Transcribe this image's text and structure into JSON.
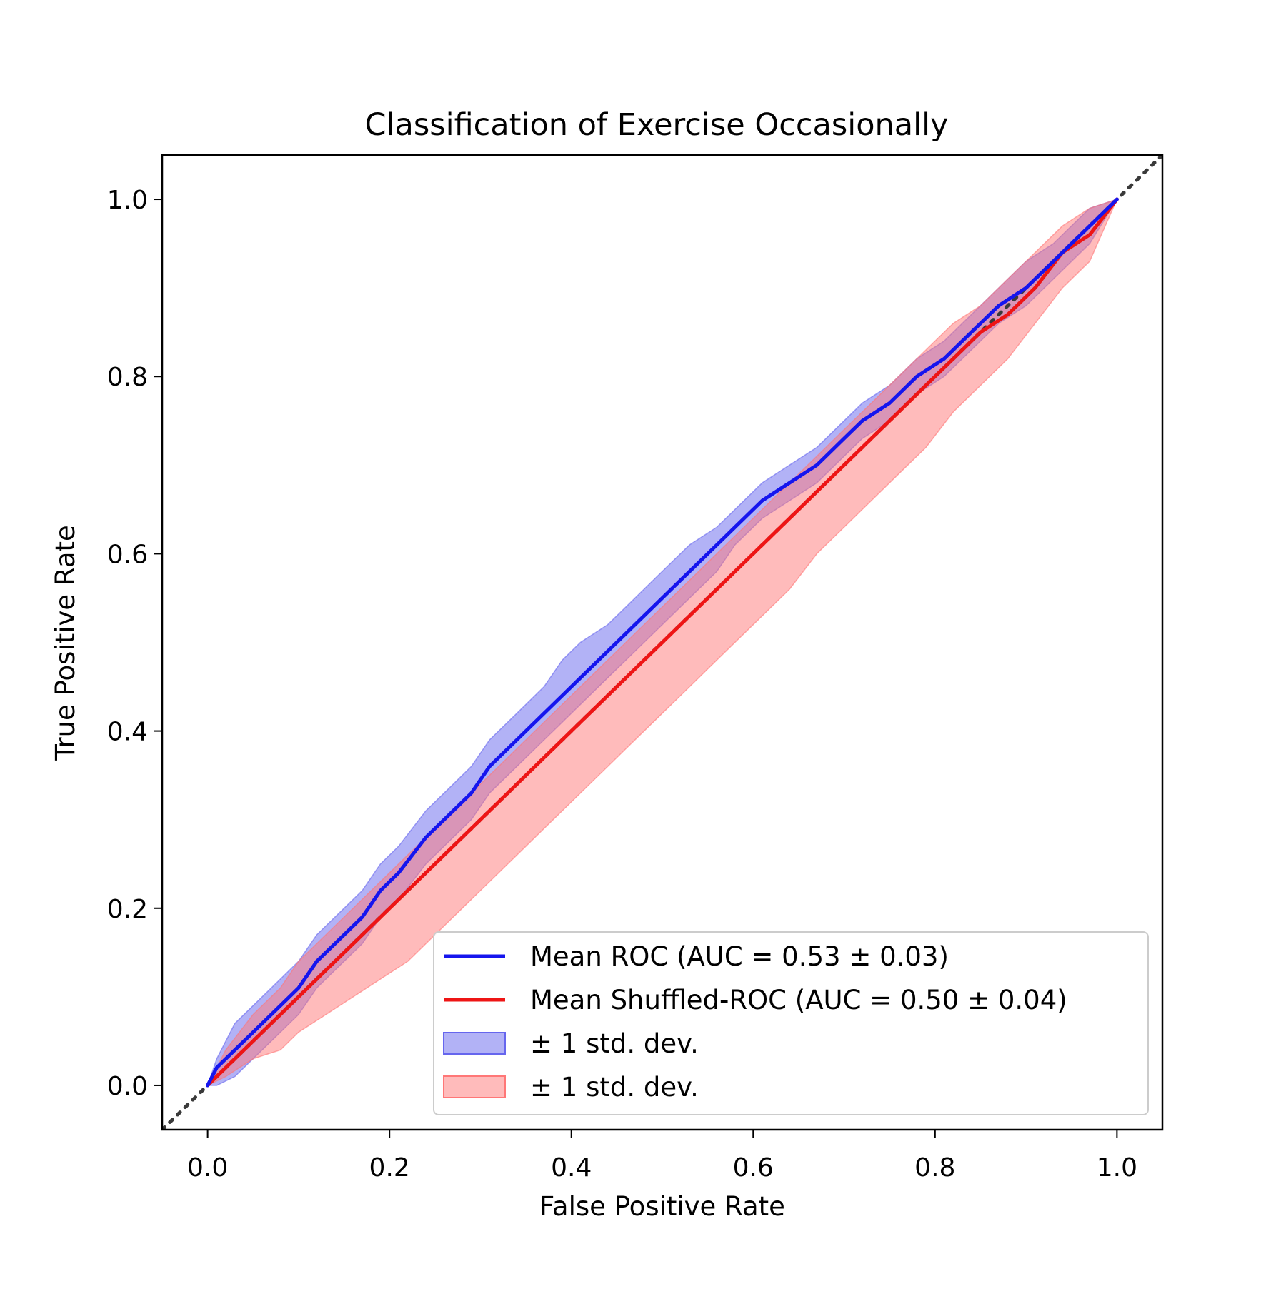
{
  "chart_data": {
    "type": "line",
    "title": "Classification of Exercise Occasionally",
    "xlabel": "False Positive Rate",
    "ylabel": "True Positive Rate",
    "xlim": [
      -0.05,
      1.05
    ],
    "ylim": [
      -0.05,
      1.05
    ],
    "xticks": [
      "0.0",
      "0.2",
      "0.4",
      "0.6",
      "0.8",
      "1.0"
    ],
    "yticks": [
      "0.0",
      "0.2",
      "0.4",
      "0.6",
      "0.8",
      "1.0"
    ],
    "grid": false,
    "legend_position": "lower-right",
    "chance_line": {
      "x": [
        -0.05,
        1.05
      ],
      "y": [
        -0.05,
        1.05
      ],
      "color": "#3a3a3a",
      "style": "dotted"
    },
    "series": [
      {
        "name": "Mean ROC (AUC = 0.53 ± 0.03)",
        "color": "#1515ee",
        "x": [
          0.0,
          0.01,
          0.03,
          0.05,
          0.08,
          0.1,
          0.12,
          0.14,
          0.17,
          0.19,
          0.21,
          0.24,
          0.27,
          0.29,
          0.31,
          0.34,
          0.37,
          0.39,
          0.41,
          0.44,
          0.46,
          0.48,
          0.51,
          0.53,
          0.56,
          0.58,
          0.61,
          0.64,
          0.67,
          0.7,
          0.72,
          0.75,
          0.78,
          0.81,
          0.84,
          0.87,
          0.9,
          0.93,
          0.95,
          0.97,
          1.0
        ],
        "y": [
          0.0,
          0.02,
          0.04,
          0.06,
          0.09,
          0.11,
          0.14,
          0.16,
          0.19,
          0.22,
          0.24,
          0.28,
          0.31,
          0.33,
          0.36,
          0.39,
          0.42,
          0.44,
          0.46,
          0.49,
          0.51,
          0.53,
          0.56,
          0.58,
          0.61,
          0.63,
          0.66,
          0.68,
          0.7,
          0.73,
          0.75,
          0.77,
          0.8,
          0.82,
          0.85,
          0.88,
          0.9,
          0.93,
          0.95,
          0.97,
          1.0
        ]
      },
      {
        "name": "Mean Shuffled-ROC (AUC = 0.50 ± 0.04)",
        "color": "#ee1515",
        "x": [
          0.0,
          0.02,
          0.05,
          0.08,
          0.1,
          0.13,
          0.16,
          0.19,
          0.22,
          0.25,
          0.28,
          0.31,
          0.34,
          0.37,
          0.4,
          0.43,
          0.46,
          0.49,
          0.52,
          0.55,
          0.58,
          0.61,
          0.64,
          0.67,
          0.7,
          0.73,
          0.76,
          0.79,
          0.82,
          0.85,
          0.88,
          0.91,
          0.94,
          0.97,
          1.0
        ],
        "y": [
          0.0,
          0.02,
          0.05,
          0.08,
          0.1,
          0.13,
          0.16,
          0.19,
          0.22,
          0.25,
          0.28,
          0.31,
          0.34,
          0.37,
          0.4,
          0.43,
          0.46,
          0.49,
          0.52,
          0.55,
          0.58,
          0.61,
          0.64,
          0.67,
          0.7,
          0.73,
          0.76,
          0.79,
          0.82,
          0.85,
          0.87,
          0.9,
          0.94,
          0.96,
          1.0
        ]
      }
    ],
    "bands": [
      {
        "name": "± 1 std. dev.",
        "color": "#6666ee",
        "x": [
          0.0,
          0.01,
          0.03,
          0.05,
          0.08,
          0.1,
          0.12,
          0.14,
          0.17,
          0.19,
          0.21,
          0.24,
          0.27,
          0.29,
          0.31,
          0.34,
          0.37,
          0.39,
          0.41,
          0.44,
          0.46,
          0.48,
          0.51,
          0.53,
          0.56,
          0.58,
          0.61,
          0.64,
          0.67,
          0.7,
          0.72,
          0.75,
          0.78,
          0.81,
          0.84,
          0.87,
          0.9,
          0.93,
          0.95,
          0.97,
          1.0
        ],
        "upper": [
          0.0,
          0.03,
          0.07,
          0.09,
          0.12,
          0.14,
          0.17,
          0.19,
          0.22,
          0.25,
          0.27,
          0.31,
          0.34,
          0.36,
          0.39,
          0.42,
          0.45,
          0.48,
          0.5,
          0.52,
          0.54,
          0.56,
          0.59,
          0.61,
          0.63,
          0.65,
          0.68,
          0.7,
          0.72,
          0.75,
          0.77,
          0.79,
          0.82,
          0.84,
          0.87,
          0.9,
          0.93,
          0.95,
          0.97,
          0.99,
          1.0
        ],
        "lower": [
          0.0,
          0.0,
          0.01,
          0.03,
          0.06,
          0.08,
          0.11,
          0.13,
          0.16,
          0.19,
          0.21,
          0.25,
          0.28,
          0.3,
          0.33,
          0.36,
          0.39,
          0.41,
          0.43,
          0.46,
          0.48,
          0.5,
          0.53,
          0.55,
          0.58,
          0.61,
          0.64,
          0.66,
          0.68,
          0.71,
          0.73,
          0.75,
          0.78,
          0.8,
          0.83,
          0.86,
          0.88,
          0.91,
          0.93,
          0.95,
          1.0
        ]
      },
      {
        "name": "± 1 std. dev.",
        "color": "#ff7777",
        "x": [
          0.0,
          0.02,
          0.05,
          0.08,
          0.1,
          0.13,
          0.16,
          0.19,
          0.22,
          0.25,
          0.28,
          0.31,
          0.34,
          0.37,
          0.4,
          0.43,
          0.46,
          0.49,
          0.52,
          0.55,
          0.58,
          0.61,
          0.64,
          0.67,
          0.7,
          0.73,
          0.76,
          0.79,
          0.82,
          0.85,
          0.88,
          0.91,
          0.94,
          0.97,
          1.0
        ],
        "upper": [
          0.0,
          0.04,
          0.08,
          0.11,
          0.14,
          0.17,
          0.2,
          0.23,
          0.26,
          0.29,
          0.32,
          0.35,
          0.38,
          0.41,
          0.44,
          0.47,
          0.5,
          0.53,
          0.56,
          0.59,
          0.62,
          0.65,
          0.68,
          0.71,
          0.74,
          0.77,
          0.8,
          0.83,
          0.86,
          0.88,
          0.91,
          0.94,
          0.97,
          0.99,
          1.0
        ],
        "lower": [
          0.0,
          0.01,
          0.03,
          0.04,
          0.06,
          0.08,
          0.1,
          0.12,
          0.14,
          0.17,
          0.2,
          0.23,
          0.26,
          0.29,
          0.32,
          0.35,
          0.38,
          0.41,
          0.44,
          0.47,
          0.5,
          0.53,
          0.56,
          0.6,
          0.63,
          0.66,
          0.69,
          0.72,
          0.76,
          0.79,
          0.82,
          0.86,
          0.9,
          0.93,
          1.0
        ]
      }
    ]
  }
}
